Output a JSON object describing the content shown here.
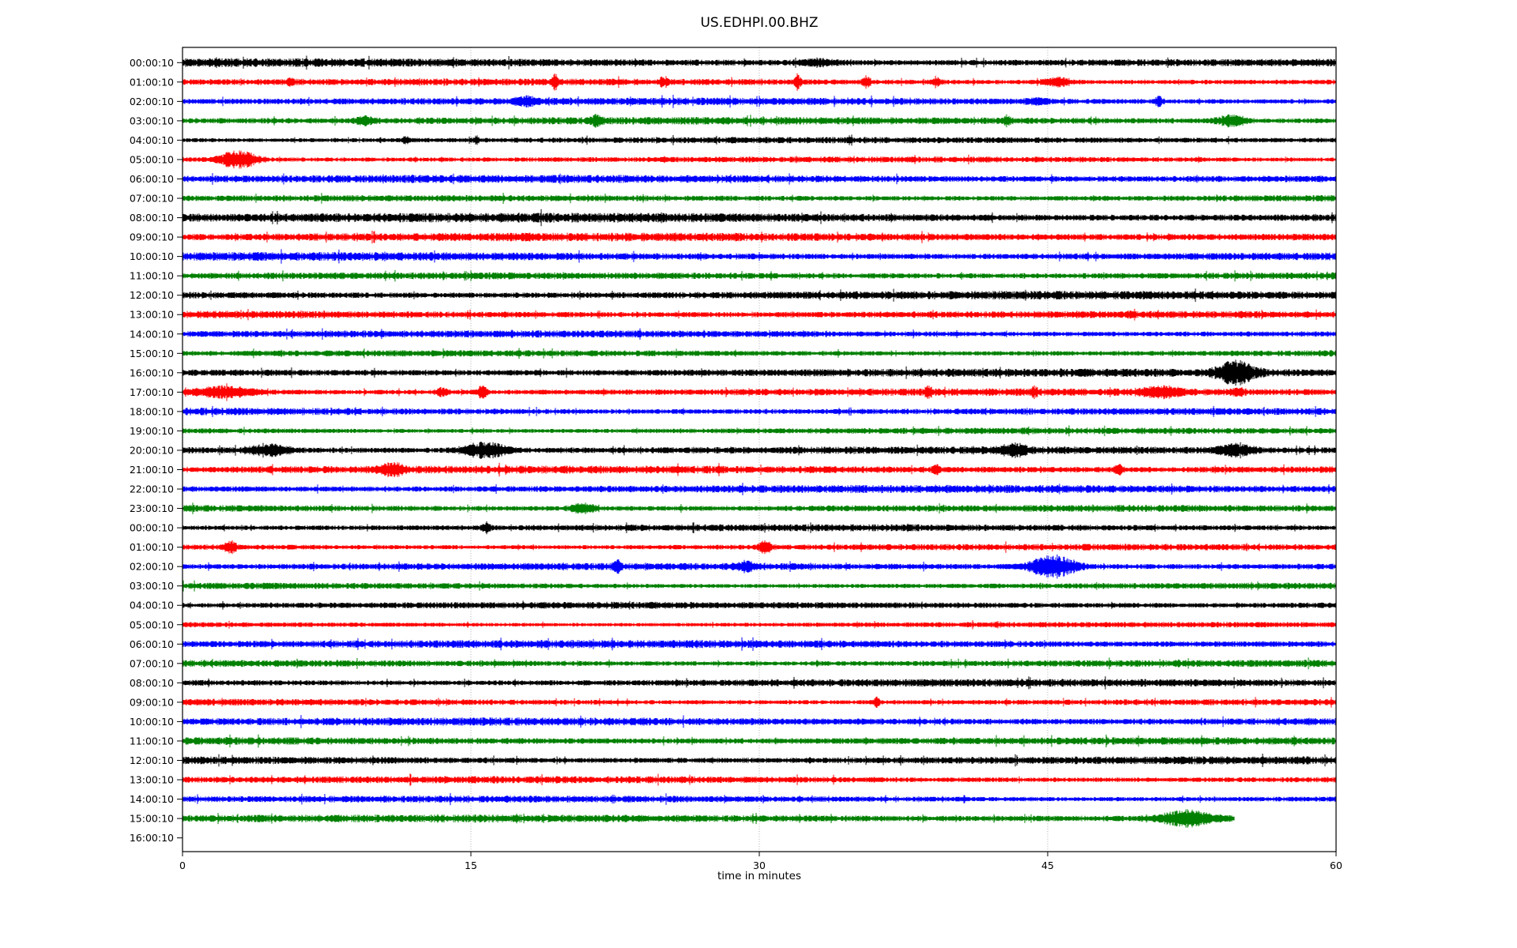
{
  "chart_data": {
    "type": "line",
    "subtype": "helicorder-dayplot",
    "title": "US.EDHPI.00.BHZ",
    "xlabel": "time in minutes",
    "x_ticks": [
      0,
      15,
      30,
      45,
      60
    ],
    "x_range": [
      0,
      60
    ],
    "minutes_per_row": 60,
    "grid": {
      "vertical_at": [
        15,
        30,
        45
      ],
      "style": "dotted",
      "color": "#999999"
    },
    "trace_color_cycle": [
      "#000000",
      "#ff0000",
      "#0000ff",
      "#008000"
    ],
    "legend": "none",
    "rows": [
      {
        "label": "00:00:10",
        "color": "#000000",
        "noise": 3.2,
        "end_min": 60,
        "events": [
          [
            33.0,
            3.5,
            1.5
          ]
        ]
      },
      {
        "label": "01:00:10",
        "color": "#ff0000",
        "noise": 2.6,
        "end_min": 60,
        "events": [
          [
            5.6,
            4,
            0.3
          ],
          [
            19.4,
            9,
            0.25
          ],
          [
            25.0,
            6,
            0.3
          ],
          [
            32.0,
            11,
            0.25
          ],
          [
            35.6,
            8,
            0.3
          ],
          [
            39.2,
            4,
            0.4
          ],
          [
            45.5,
            5,
            1.2
          ]
        ]
      },
      {
        "label": "02:00:10",
        "color": "#0000ff",
        "noise": 3.0,
        "end_min": 60,
        "events": [
          [
            17.9,
            5,
            0.9
          ],
          [
            44.4,
            3,
            0.8
          ],
          [
            50.8,
            6,
            0.3
          ]
        ]
      },
      {
        "label": "03:00:10",
        "color": "#008000",
        "noise": 2.8,
        "end_min": 60,
        "events": [
          [
            9.5,
            4,
            0.8
          ],
          [
            21.5,
            7,
            0.4
          ],
          [
            42.9,
            6,
            0.3
          ],
          [
            54.6,
            6,
            1.2
          ]
        ]
      },
      {
        "label": "04:00:10",
        "color": "#000000",
        "noise": 2.6,
        "end_min": 60,
        "events": [
          [
            11.6,
            4,
            0.3
          ],
          [
            15.3,
            4,
            0.2
          ]
        ]
      },
      {
        "label": "05:00:10",
        "color": "#ff0000",
        "noise": 2.6,
        "end_min": 60,
        "events": [
          [
            2.9,
            11,
            1.6
          ]
        ]
      },
      {
        "label": "06:00:10",
        "color": "#0000ff",
        "noise": 3.0,
        "end_min": 60,
        "events": []
      },
      {
        "label": "07:00:10",
        "color": "#008000",
        "noise": 2.6,
        "end_min": 60,
        "events": []
      },
      {
        "label": "08:00:10",
        "color": "#000000",
        "noise": 3.8,
        "end_min": 60,
        "events": []
      },
      {
        "label": "09:00:10",
        "color": "#ff0000",
        "noise": 3.2,
        "end_min": 60,
        "events": []
      },
      {
        "label": "10:00:10",
        "color": "#0000ff",
        "noise": 3.4,
        "end_min": 60,
        "events": []
      },
      {
        "label": "11:00:10",
        "color": "#008000",
        "noise": 2.9,
        "end_min": 60,
        "events": []
      },
      {
        "label": "12:00:10",
        "color": "#000000",
        "noise": 3.4,
        "end_min": 60,
        "events": []
      },
      {
        "label": "13:00:10",
        "color": "#ff0000",
        "noise": 3.0,
        "end_min": 60,
        "events": [
          [
            49.3,
            3,
            0.2
          ]
        ]
      },
      {
        "label": "14:00:10",
        "color": "#0000ff",
        "noise": 2.7,
        "end_min": 60,
        "events": []
      },
      {
        "label": "15:00:10",
        "color": "#008000",
        "noise": 2.6,
        "end_min": 60,
        "events": []
      },
      {
        "label": "16:00:10",
        "color": "#000000",
        "noise": 3.0,
        "end_min": 60,
        "events": [
          [
            54.8,
            13,
            1.6
          ]
        ]
      },
      {
        "label": "17:00:10",
        "color": "#ff0000",
        "noise": 2.9,
        "end_min": 60,
        "events": [
          [
            2.2,
            6,
            2.5
          ],
          [
            13.5,
            5,
            0.5
          ],
          [
            15.6,
            7,
            0.4
          ],
          [
            38.8,
            6,
            0.3
          ],
          [
            44.3,
            5,
            0.3
          ],
          [
            50.9,
            5,
            1.8
          ],
          [
            54.9,
            4,
            0.5
          ]
        ]
      },
      {
        "label": "18:00:10",
        "color": "#0000ff",
        "noise": 3.0,
        "end_min": 60,
        "events": []
      },
      {
        "label": "19:00:10",
        "color": "#008000",
        "noise": 2.7,
        "end_min": 60,
        "events": []
      },
      {
        "label": "20:00:10",
        "color": "#000000",
        "noise": 3.3,
        "end_min": 60,
        "events": [
          [
            4.5,
            7,
            1.6
          ],
          [
            15.8,
            9,
            2.0
          ],
          [
            43.2,
            6,
            1.2
          ],
          [
            54.8,
            7,
            1.4
          ]
        ]
      },
      {
        "label": "21:00:10",
        "color": "#ff0000",
        "noise": 3.0,
        "end_min": 60,
        "events": [
          [
            10.9,
            7,
            1.0
          ],
          [
            39.2,
            7,
            0.25
          ],
          [
            48.7,
            7,
            0.3
          ]
        ]
      },
      {
        "label": "22:00:10",
        "color": "#0000ff",
        "noise": 3.0,
        "end_min": 60,
        "events": []
      },
      {
        "label": "23:00:10",
        "color": "#008000",
        "noise": 3.0,
        "end_min": 60,
        "events": [
          [
            20.8,
            6,
            1.0
          ]
        ]
      },
      {
        "label": "00:00:10",
        "color": "#000000",
        "noise": 3.0,
        "end_min": 60,
        "events": [
          [
            15.8,
            6,
            0.3
          ]
        ]
      },
      {
        "label": "01:00:10",
        "color": "#ff0000",
        "noise": 2.7,
        "end_min": 60,
        "events": [
          [
            2.5,
            7,
            0.5
          ],
          [
            30.3,
            6,
            0.6
          ]
        ]
      },
      {
        "label": "02:00:10",
        "color": "#0000ff",
        "noise": 3.0,
        "end_min": 60,
        "events": [
          [
            22.6,
            7,
            0.3
          ],
          [
            29.3,
            5,
            0.8
          ],
          [
            45.3,
            13,
            2.0
          ]
        ]
      },
      {
        "label": "03:00:10",
        "color": "#008000",
        "noise": 2.7,
        "end_min": 60,
        "events": []
      },
      {
        "label": "04:00:10",
        "color": "#000000",
        "noise": 3.0,
        "end_min": 60,
        "events": []
      },
      {
        "label": "05:00:10",
        "color": "#ff0000",
        "noise": 2.4,
        "end_min": 60,
        "events": []
      },
      {
        "label": "06:00:10",
        "color": "#0000ff",
        "noise": 3.0,
        "end_min": 60,
        "events": []
      },
      {
        "label": "07:00:10",
        "color": "#008000",
        "noise": 3.0,
        "end_min": 60,
        "events": []
      },
      {
        "label": "08:00:10",
        "color": "#000000",
        "noise": 3.2,
        "end_min": 60,
        "events": []
      },
      {
        "label": "09:00:10",
        "color": "#ff0000",
        "noise": 2.7,
        "end_min": 60,
        "events": [
          [
            36.1,
            7,
            0.25
          ]
        ]
      },
      {
        "label": "10:00:10",
        "color": "#0000ff",
        "noise": 3.0,
        "end_min": 60,
        "events": []
      },
      {
        "label": "11:00:10",
        "color": "#008000",
        "noise": 2.9,
        "end_min": 60,
        "events": []
      },
      {
        "label": "12:00:10",
        "color": "#000000",
        "noise": 3.4,
        "end_min": 60,
        "events": []
      },
      {
        "label": "13:00:10",
        "color": "#ff0000",
        "noise": 3.0,
        "end_min": 60,
        "events": []
      },
      {
        "label": "14:00:10",
        "color": "#0000ff",
        "noise": 2.7,
        "end_min": 60,
        "events": []
      },
      {
        "label": "15:00:10",
        "color": "#008000",
        "noise": 2.9,
        "end_min": 54.7,
        "events": [
          [
            52.2,
            9,
            2.2
          ]
        ]
      },
      {
        "label": "16:00:10",
        "color": null,
        "noise": 0,
        "end_min": 0,
        "events": []
      }
    ]
  }
}
